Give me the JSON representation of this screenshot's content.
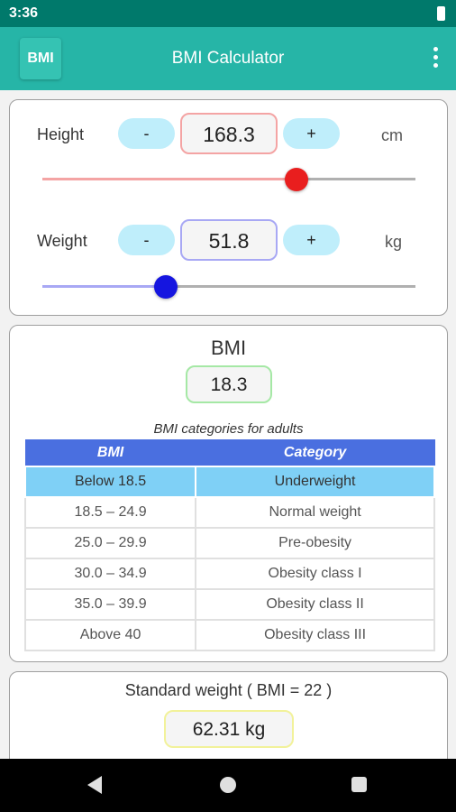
{
  "status": {
    "time": "3:36"
  },
  "app": {
    "logo": "BMI",
    "title": "BMI Calculator",
    "menu_icon": "more-vert-icon"
  },
  "height": {
    "label": "Height",
    "value": "168.3",
    "unit": "cm",
    "minus": "-",
    "plus": "+",
    "slider_fraction": 0.68,
    "accent": "#e91e1e",
    "border": "#f4a4a4"
  },
  "weight": {
    "label": "Weight",
    "value": "51.8",
    "unit": "kg",
    "minus": "-",
    "plus": "+",
    "slider_fraction": 0.33,
    "accent": "#1515e0",
    "border": "#a8a8f4"
  },
  "bmi": {
    "title": "BMI",
    "value": "18.3",
    "table_caption": "BMI categories for adults",
    "headers": [
      "BMI",
      "Category"
    ],
    "rows": [
      [
        "Below 18.5",
        "Underweight"
      ],
      [
        "18.5 – 24.9",
        "Normal weight"
      ],
      [
        "25.0 – 29.9",
        "Pre-obesity"
      ],
      [
        "30.0 – 34.9",
        "Obesity class I"
      ],
      [
        "35.0 – 39.9",
        "Obesity class II"
      ],
      [
        "Above 40",
        "Obesity class III"
      ]
    ],
    "highlighted_row": 0
  },
  "standard": {
    "title": "Standard weight ( BMI = 22 )",
    "value": "62.31 kg"
  },
  "colors": {
    "toolbar": "#26b5a7",
    "statusbar": "#00796b",
    "table_header": "#4a6fe0",
    "table_highlight": "#7fd0f6"
  }
}
